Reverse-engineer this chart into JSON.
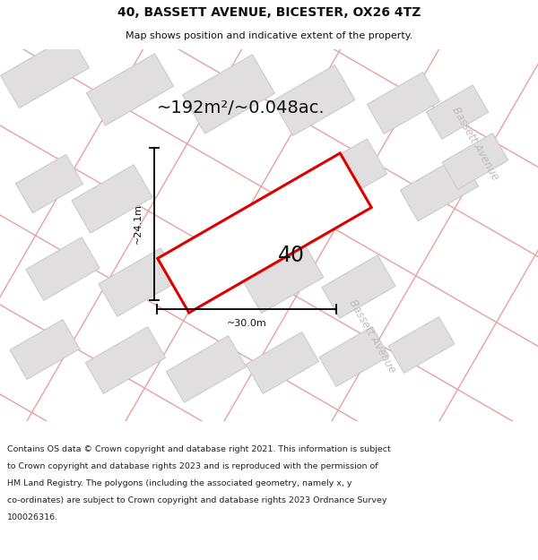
{
  "title": "40, BASSETT AVENUE, BICESTER, OX26 4TZ",
  "subtitle": "Map shows position and indicative extent of the property.",
  "area_text": "~192m²/~0.048ac.",
  "label_40": "40",
  "dim_width": "~30.0m",
  "dim_height": "~24.1m",
  "road_label_bottom": "Bassett Avenue",
  "road_label_top": "Bassett Avenue",
  "footer_line1": "Contains OS data © Crown copyright and database right 2021. This information is subject",
  "footer_line2": "to Crown copyright and database rights 2023 and is reproduced with the permission of",
  "footer_line3": "HM Land Registry. The polygons (including the associated geometry, namely x, y",
  "footer_line4": "co-ordinates) are subject to Crown copyright and database rights 2023 Ordnance Survey",
  "footer_line5": "100026316.",
  "map_bg": "#f2f0f0",
  "building_fill": "#e0dede",
  "building_stroke": "#c8c8c8",
  "plot_fill": "#ffffff",
  "plot_stroke": "#dd0000",
  "road_line_color": "#e8a0a0",
  "road_line_color2": "#d0d0d0",
  "dim_color": "#000000",
  "text_color": "#111111",
  "road_text_color": "#c0bcbc",
  "title_fontsize": 10,
  "subtitle_fontsize": 8,
  "area_fontsize": 14,
  "label_fontsize": 17,
  "dim_fontsize": 8,
  "road_fontsize": 8.5,
  "footer_fontsize": 6.8
}
